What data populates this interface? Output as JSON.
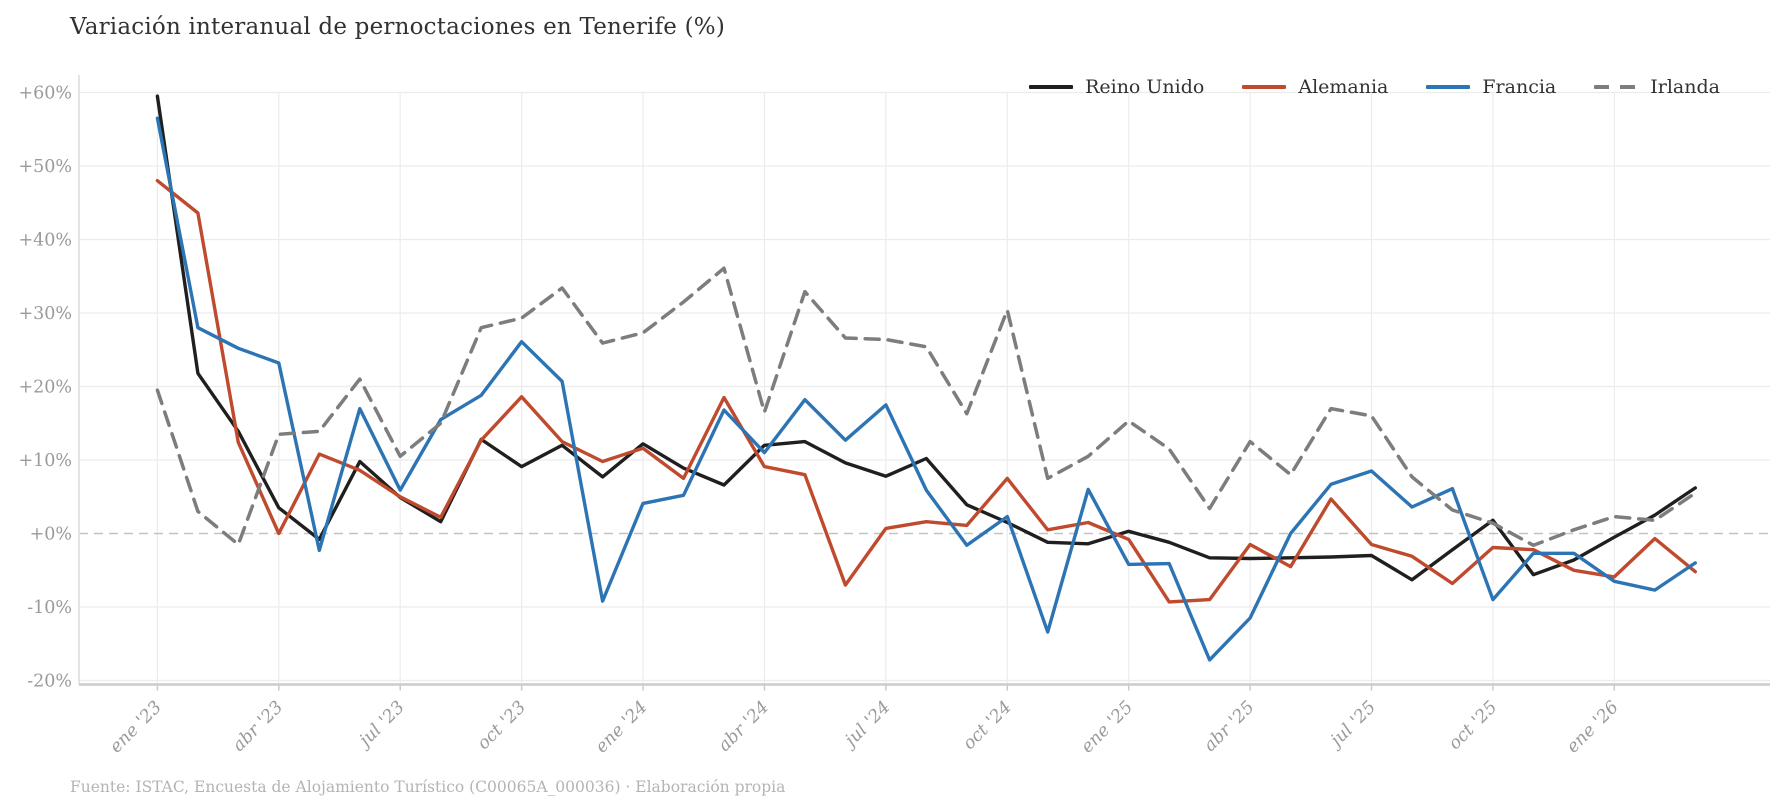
{
  "title": "Variación interanual de pernoctaciones en Tenerife (%)",
  "footer": "Fuente: ISTAC, Encuesta de Alojamiento Turístico (C00065A_000036)  ·  Elaboración propia",
  "legend": [
    {
      "label": "Reino Unido",
      "color": "#1f1f1f",
      "dashed": false
    },
    {
      "label": "Alemania",
      "color": "#bf4a2e",
      "dashed": false
    },
    {
      "label": "Francia",
      "color": "#2d74b4",
      "dashed": false
    },
    {
      "label": "Irlanda",
      "color": "#7d7d7d",
      "dashed": true
    }
  ],
  "chart_data": {
    "type": "line",
    "title": "Variación interanual de pernoctaciones en Tenerife (%)",
    "xlabel": "",
    "ylabel": "",
    "ylim": [
      -20,
      60
    ],
    "grid": true,
    "zero_line_dashed": true,
    "legend_position": "top-right",
    "y_ticks": [
      {
        "value": 60,
        "label": "+60%"
      },
      {
        "value": 50,
        "label": "+50%"
      },
      {
        "value": 40,
        "label": "+40%"
      },
      {
        "value": 30,
        "label": "+30%"
      },
      {
        "value": 20,
        "label": "+20%"
      },
      {
        "value": 10,
        "label": "+10%"
      },
      {
        "value": 0,
        "label": "+0%"
      },
      {
        "value": -10,
        "label": "-10%"
      },
      {
        "value": -20,
        "label": "-20%"
      }
    ],
    "x_ticks": [
      {
        "month_index": 0,
        "label": "ene '23"
      },
      {
        "month_index": 3,
        "label": "abr '23"
      },
      {
        "month_index": 6,
        "label": "jul '23"
      },
      {
        "month_index": 9,
        "label": "oct '23"
      },
      {
        "month_index": 12,
        "label": "ene '24"
      },
      {
        "month_index": 15,
        "label": "abr '24"
      },
      {
        "month_index": 18,
        "label": "jul '24"
      },
      {
        "month_index": 21,
        "label": "oct '24"
      },
      {
        "month_index": 24,
        "label": "ene '25"
      },
      {
        "month_index": 27,
        "label": "abr '25"
      },
      {
        "month_index": 30,
        "label": "jul '25"
      },
      {
        "month_index": 33,
        "label": "oct '25"
      },
      {
        "month_index": 36,
        "label": "ene '26"
      }
    ],
    "categories": [
      "ene '23",
      "feb '23",
      "mar '23",
      "abr '23",
      "may '23",
      "jun '23",
      "jul '23",
      "ago '23",
      "sep '23",
      "oct '23",
      "nov '23",
      "dic '23",
      "ene '24",
      "feb '24",
      "mar '24",
      "abr '24",
      "may '24",
      "jun '24",
      "jul '24",
      "ago '24",
      "sep '24",
      "oct '24",
      "nov '24",
      "dic '24",
      "ene '25",
      "feb '25",
      "mar '25",
      "abr '25",
      "may '25",
      "jun '25",
      "jul '25",
      "ago '25",
      "sep '25",
      "oct '25",
      "nov '25",
      "dic '25",
      "ene '26",
      "feb '26",
      "mar '26"
    ],
    "series": [
      {
        "name": "Reino Unido",
        "color": "#1f1f1f",
        "dashed": false,
        "width": 3.4,
        "values": [
          59.5,
          21.8,
          13.9,
          3.5,
          -0.8,
          9.8,
          4.9,
          1.6,
          12.8,
          9.1,
          12.0,
          7.7,
          12.2,
          8.9,
          6.6,
          12.0,
          12.5,
          9.6,
          7.8,
          10.2,
          3.9,
          1.5,
          -1.2,
          -1.4,
          0.3,
          -1.2,
          -3.3,
          -3.4,
          -3.3,
          -3.2,
          -3.0,
          -6.3,
          -2.2,
          1.8,
          -5.6,
          -3.6,
          -0.5,
          2.5,
          6.2
        ]
      },
      {
        "name": "Alemania",
        "color": "#bf4a2e",
        "dashed": false,
        "width": 3.4,
        "values": [
          48.0,
          43.6,
          12.4,
          0.0,
          10.8,
          8.6,
          5.0,
          2.2,
          12.7,
          18.6,
          12.5,
          9.8,
          11.6,
          7.5,
          18.5,
          9.1,
          8.0,
          -7.0,
          0.7,
          1.6,
          1.1,
          7.5,
          0.5,
          1.5,
          -0.8,
          -9.3,
          -9.0,
          -1.5,
          -4.5,
          4.7,
          -1.5,
          -3.1,
          -6.8,
          -1.9,
          -2.2,
          -5.0,
          -5.9,
          -0.7,
          -5.2
        ]
      },
      {
        "name": "Francia",
        "color": "#2d74b4",
        "dashed": false,
        "width": 3.4,
        "values": [
          56.5,
          28.0,
          25.2,
          23.2,
          -2.3,
          17.0,
          5.9,
          15.5,
          18.8,
          26.1,
          20.7,
          -9.2,
          4.1,
          5.2,
          16.8,
          11.0,
          18.2,
          12.7,
          17.5,
          5.9,
          -1.6,
          2.3,
          -13.4,
          6.0,
          -4.2,
          -4.1,
          -17.2,
          -11.5,
          0.0,
          6.7,
          8.5,
          3.6,
          6.1,
          -9.0,
          -2.7,
          -2.7,
          -6.5,
          -7.7,
          -4.0
        ]
      },
      {
        "name": "Irlanda",
        "color": "#7d7d7d",
        "dashed": true,
        "width": 3.5,
        "values": [
          19.5,
          3.0,
          -1.5,
          13.5,
          13.9,
          21.0,
          10.5,
          15.0,
          28.0,
          29.3,
          33.4,
          25.9,
          27.3,
          31.5,
          36.1,
          16.5,
          32.9,
          26.6,
          26.4,
          25.4,
          16.3,
          30.4,
          7.5,
          10.5,
          15.3,
          11.5,
          3.4,
          12.5,
          8.0,
          17.0,
          16.0,
          7.7,
          3.2,
          1.4,
          -1.6,
          0.5,
          2.3,
          1.8,
          5.5
        ]
      }
    ]
  }
}
